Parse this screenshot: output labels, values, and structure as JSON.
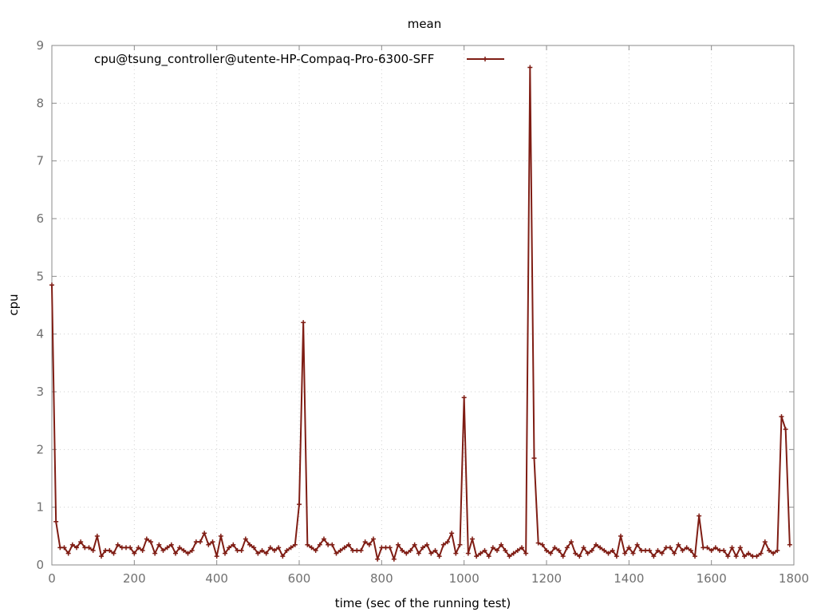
{
  "chart_data": {
    "type": "line",
    "title": "mean",
    "xlabel": "time (sec of the running test)",
    "ylabel": "cpu",
    "xlim": [
      0,
      1800
    ],
    "ylim": [
      0,
      9
    ],
    "x_ticks": [
      0,
      200,
      400,
      600,
      800,
      1000,
      1200,
      1400,
      1600,
      1800
    ],
    "y_ticks": [
      0,
      1,
      2,
      3,
      4,
      5,
      6,
      7,
      8,
      9
    ],
    "grid": true,
    "legend_position": "top-left",
    "series": [
      {
        "name": "cpu@tsung_controller@utente-HP-Compaq-Pro-6300-SFF",
        "color": "#7f1d14",
        "marker": "plus",
        "x": [
          0,
          10,
          20,
          30,
          40,
          50,
          60,
          70,
          80,
          90,
          100,
          110,
          120,
          130,
          140,
          150,
          160,
          170,
          180,
          190,
          200,
          210,
          220,
          230,
          240,
          250,
          260,
          270,
          280,
          290,
          300,
          310,
          320,
          330,
          340,
          350,
          360,
          370,
          380,
          390,
          400,
          410,
          420,
          430,
          440,
          450,
          460,
          470,
          480,
          490,
          500,
          510,
          520,
          530,
          540,
          550,
          560,
          570,
          580,
          590,
          600,
          610,
          620,
          630,
          640,
          650,
          660,
          670,
          680,
          690,
          700,
          710,
          720,
          730,
          740,
          750,
          760,
          770,
          780,
          790,
          800,
          810,
          820,
          830,
          840,
          850,
          860,
          870,
          880,
          890,
          900,
          910,
          920,
          930,
          940,
          950,
          960,
          970,
          980,
          990,
          1000,
          1010,
          1020,
          1030,
          1040,
          1050,
          1060,
          1070,
          1080,
          1090,
          1100,
          1110,
          1120,
          1130,
          1140,
          1150,
          1160,
          1170,
          1180,
          1190,
          1200,
          1210,
          1220,
          1230,
          1240,
          1250,
          1260,
          1270,
          1280,
          1290,
          1300,
          1310,
          1320,
          1330,
          1340,
          1350,
          1360,
          1370,
          1380,
          1390,
          1400,
          1410,
          1420,
          1430,
          1440,
          1450,
          1460,
          1470,
          1480,
          1490,
          1500,
          1510,
          1520,
          1530,
          1540,
          1550,
          1560,
          1570,
          1580,
          1590,
          1600,
          1610,
          1620,
          1630,
          1640,
          1650,
          1660,
          1670,
          1680,
          1690,
          1700,
          1710,
          1720,
          1730,
          1740,
          1750,
          1760,
          1770,
          1780,
          1790
        ],
        "values": [
          4.85,
          0.75,
          0.3,
          0.3,
          0.2,
          0.35,
          0.3,
          0.4,
          0.3,
          0.3,
          0.25,
          0.5,
          0.15,
          0.25,
          0.25,
          0.2,
          0.35,
          0.3,
          0.3,
          0.3,
          0.2,
          0.3,
          0.25,
          0.45,
          0.4,
          0.2,
          0.35,
          0.25,
          0.3,
          0.35,
          0.2,
          0.3,
          0.25,
          0.2,
          0.25,
          0.4,
          0.4,
          0.55,
          0.35,
          0.4,
          0.15,
          0.5,
          0.2,
          0.3,
          0.35,
          0.25,
          0.25,
          0.45,
          0.35,
          0.3,
          0.2,
          0.25,
          0.2,
          0.3,
          0.25,
          0.3,
          0.15,
          0.25,
          0.3,
          0.35,
          1.05,
          4.2,
          0.35,
          0.3,
          0.25,
          0.35,
          0.45,
          0.35,
          0.35,
          0.2,
          0.25,
          0.3,
          0.35,
          0.25,
          0.25,
          0.25,
          0.4,
          0.35,
          0.45,
          0.1,
          0.3,
          0.3,
          0.3,
          0.1,
          0.35,
          0.25,
          0.2,
          0.25,
          0.35,
          0.2,
          0.3,
          0.35,
          0.2,
          0.25,
          0.15,
          0.35,
          0.4,
          0.55,
          0.2,
          0.35,
          2.9,
          0.2,
          0.45,
          0.15,
          0.2,
          0.25,
          0.15,
          0.3,
          0.25,
          0.35,
          0.25,
          0.15,
          0.2,
          0.25,
          0.3,
          0.2,
          8.62,
          1.85,
          0.38,
          0.35,
          0.25,
          0.2,
          0.3,
          0.25,
          0.15,
          0.3,
          0.4,
          0.2,
          0.15,
          0.3,
          0.2,
          0.25,
          0.35,
          0.3,
          0.25,
          0.2,
          0.25,
          0.15,
          0.5,
          0.2,
          0.3,
          0.2,
          0.35,
          0.25,
          0.25,
          0.25,
          0.15,
          0.25,
          0.2,
          0.3,
          0.3,
          0.2,
          0.35,
          0.25,
          0.3,
          0.25,
          0.15,
          0.85,
          0.3,
          0.3,
          0.25,
          0.3,
          0.25,
          0.25,
          0.15,
          0.3,
          0.15,
          0.3,
          0.15,
          0.2,
          0.15,
          0.15,
          0.2,
          0.4,
          0.25,
          0.2,
          0.25,
          2.57,
          2.35,
          0.35
        ]
      }
    ]
  }
}
